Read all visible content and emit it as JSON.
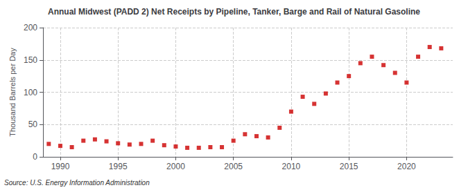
{
  "chart_data": {
    "type": "scatter",
    "title": "Annual Midwest (PADD 2) Net Receipts by Pipeline, Tanker, Barge and Rail of Natural Gasoline",
    "ylabel": "Thousand Barrels per Day",
    "source": "Source: U.S. Energy Information Administration",
    "x": [
      1989,
      1990,
      1991,
      1992,
      1993,
      1994,
      1995,
      1996,
      1997,
      1998,
      1999,
      2000,
      2001,
      2002,
      2003,
      2004,
      2005,
      2006,
      2007,
      2008,
      2009,
      2010,
      2011,
      2012,
      2013,
      2014,
      2015,
      2016,
      2017,
      2018,
      2019,
      2020,
      2021,
      2022,
      2023
    ],
    "values": [
      20,
      17,
      15,
      25,
      27,
      24,
      21,
      19,
      20,
      25,
      18,
      16,
      14,
      14,
      15,
      15,
      25,
      35,
      32,
      30,
      45,
      70,
      93,
      82,
      98,
      115,
      125,
      145,
      155,
      142,
      130,
      115,
      155,
      170,
      168
    ],
    "color": "#cc0000",
    "marker": "square",
    "xlim": [
      1988.5,
      2024
    ],
    "xticks": [
      1990,
      1995,
      2000,
      2005,
      2010,
      2015,
      2020
    ],
    "ylim": [
      0,
      200
    ],
    "yticks": [
      0,
      50,
      100,
      150,
      200
    ],
    "grid": true
  }
}
